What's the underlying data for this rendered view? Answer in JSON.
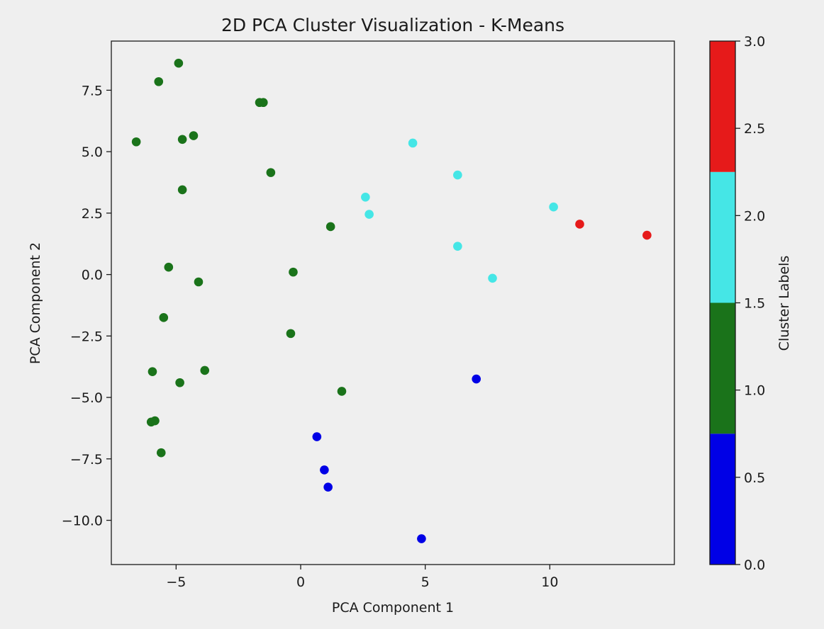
{
  "colors": {
    "background": "#efefef",
    "cluster_0": "#0000e6",
    "cluster_1": "#1a731a",
    "cluster_2": "#45e6e6",
    "cluster_3": "#e61a1a",
    "axis": "#1a1a1a"
  },
  "chart_data": {
    "type": "scatter",
    "title": "2D PCA Cluster Visualization - K-Means",
    "xlabel": "PCA Component 1",
    "ylabel": "PCA Component 2",
    "xlim": [
      -7.6,
      15.0
    ],
    "ylim": [
      -11.8,
      9.5
    ],
    "xticks": [
      -5,
      0,
      5,
      10
    ],
    "xtick_labels": [
      "−5",
      "0",
      "5",
      "10"
    ],
    "yticks": [
      -10.0,
      -7.5,
      -5.0,
      -2.5,
      0.0,
      2.5,
      5.0,
      7.5
    ],
    "ytick_labels": [
      "−10.0",
      "−7.5",
      "−5.0",
      "−2.5",
      "0.0",
      "2.5",
      "5.0",
      "7.5"
    ],
    "grid": false,
    "colorbar": {
      "label": "Cluster Labels",
      "range": [
        0.0,
        3.0
      ],
      "ticks": [
        0.0,
        0.5,
        1.0,
        1.5,
        2.0,
        2.5,
        3.0
      ],
      "tick_labels": [
        "0.0",
        "0.5",
        "1.0",
        "1.5",
        "2.0",
        "2.5",
        "3.0"
      ],
      "colors": [
        "#0000e6",
        "#1a731a",
        "#45e6e6",
        "#e61a1a"
      ]
    },
    "points": [
      {
        "x": -4.9,
        "y": 8.6,
        "cluster": 1
      },
      {
        "x": -5.7,
        "y": 7.85,
        "cluster": 1
      },
      {
        "x": -1.65,
        "y": 7.0,
        "cluster": 1
      },
      {
        "x": -1.5,
        "y": 7.0,
        "cluster": 1
      },
      {
        "x": -6.6,
        "y": 5.4,
        "cluster": 1
      },
      {
        "x": -4.75,
        "y": 5.5,
        "cluster": 1
      },
      {
        "x": -4.3,
        "y": 5.65,
        "cluster": 1
      },
      {
        "x": -1.2,
        "y": 4.15,
        "cluster": 1
      },
      {
        "x": -4.75,
        "y": 3.45,
        "cluster": 1
      },
      {
        "x": 1.2,
        "y": 1.95,
        "cluster": 1
      },
      {
        "x": -5.3,
        "y": 0.3,
        "cluster": 1
      },
      {
        "x": -0.3,
        "y": 0.1,
        "cluster": 1
      },
      {
        "x": -4.1,
        "y": -0.3,
        "cluster": 1
      },
      {
        "x": -5.5,
        "y": -1.75,
        "cluster": 1
      },
      {
        "x": -0.4,
        "y": -2.4,
        "cluster": 1
      },
      {
        "x": -5.95,
        "y": -3.95,
        "cluster": 1
      },
      {
        "x": -3.85,
        "y": -3.9,
        "cluster": 1
      },
      {
        "x": -4.85,
        "y": -4.4,
        "cluster": 1
      },
      {
        "x": 1.65,
        "y": -4.75,
        "cluster": 1
      },
      {
        "x": -6.0,
        "y": -6.0,
        "cluster": 1
      },
      {
        "x": -5.85,
        "y": -5.95,
        "cluster": 1
      },
      {
        "x": -5.6,
        "y": -7.25,
        "cluster": 1
      },
      {
        "x": 4.5,
        "y": 5.35,
        "cluster": 2
      },
      {
        "x": 6.3,
        "y": 4.05,
        "cluster": 2
      },
      {
        "x": 2.6,
        "y": 3.15,
        "cluster": 2
      },
      {
        "x": 2.75,
        "y": 2.45,
        "cluster": 2
      },
      {
        "x": 10.15,
        "y": 2.75,
        "cluster": 2
      },
      {
        "x": 6.3,
        "y": 1.15,
        "cluster": 2
      },
      {
        "x": 7.7,
        "y": -0.15,
        "cluster": 2
      },
      {
        "x": 11.2,
        "y": 2.05,
        "cluster": 3
      },
      {
        "x": 13.9,
        "y": 1.6,
        "cluster": 3
      },
      {
        "x": 7.05,
        "y": -4.25,
        "cluster": 0
      },
      {
        "x": 0.65,
        "y": -6.6,
        "cluster": 0
      },
      {
        "x": 0.95,
        "y": -7.95,
        "cluster": 0
      },
      {
        "x": 1.1,
        "y": -8.65,
        "cluster": 0
      },
      {
        "x": 4.85,
        "y": -10.75,
        "cluster": 0
      }
    ]
  }
}
